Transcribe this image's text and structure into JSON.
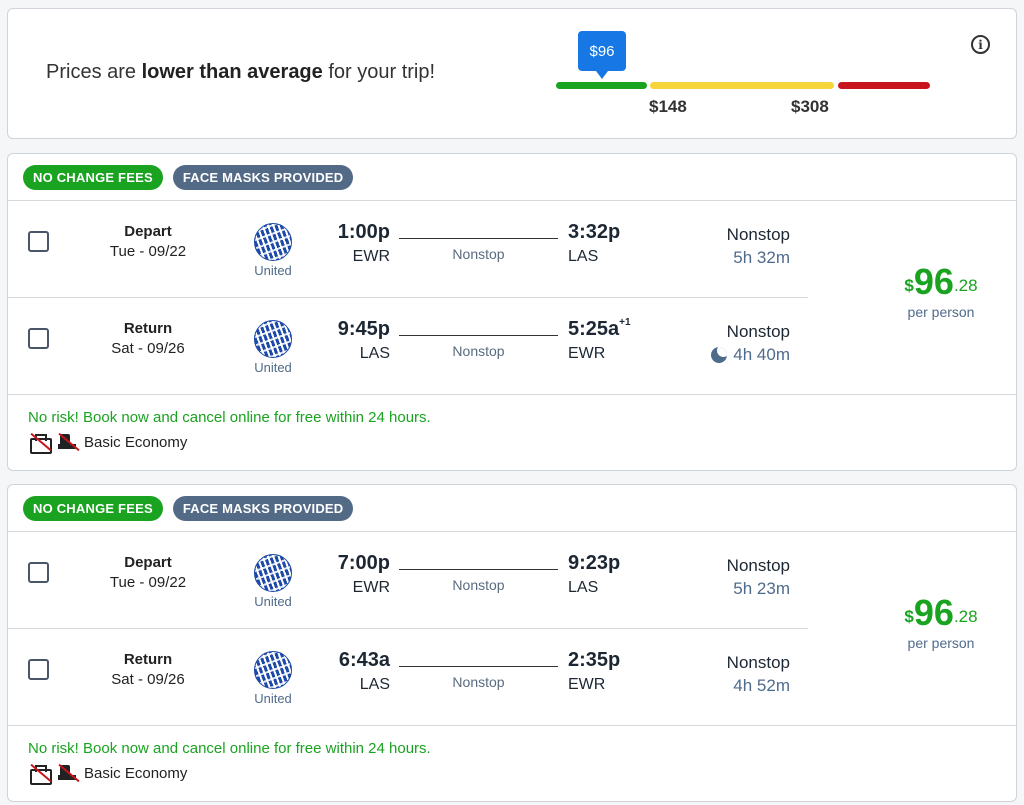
{
  "banner": {
    "text_pre": "Prices are ",
    "text_bold": "lower than average",
    "text_post": " for your trip!",
    "current_price": "$96",
    "marker_low": "$148",
    "marker_high": "$308",
    "colors": {
      "low": "#1aa320",
      "mid": "#f6d53b",
      "high": "#c8151b",
      "bubble": "#1777e4"
    },
    "info_icon": "info-icon"
  },
  "itineraries": [
    {
      "tags": [
        "NO CHANGE FEES",
        "FACE MASKS PROVIDED"
      ],
      "legs": [
        {
          "direction": "Depart",
          "date": "Tue - 09/22",
          "airline": "United",
          "dep_time": "1:00p",
          "dep_airport": "EWR",
          "mid": "Nonstop",
          "arr_time": "3:32p",
          "arr_day": "",
          "arr_airport": "LAS",
          "stops": "Nonstop",
          "duration": "5h 32m",
          "overnight": false
        },
        {
          "direction": "Return",
          "date": "Sat - 09/26",
          "airline": "United",
          "dep_time": "9:45p",
          "dep_airport": "LAS",
          "mid": "Nonstop",
          "arr_time": "5:25a",
          "arr_day": "+1",
          "arr_airport": "EWR",
          "stops": "Nonstop",
          "duration": "4h 40m",
          "overnight": true
        }
      ],
      "price": {
        "symbol": "$",
        "dollars": "96",
        "cents": ".28",
        "per": "per person"
      },
      "risk": "No risk! Book now and cancel online for free within 24 hours.",
      "fare_class": "Basic Economy"
    },
    {
      "tags": [
        "NO CHANGE FEES",
        "FACE MASKS PROVIDED"
      ],
      "legs": [
        {
          "direction": "Depart",
          "date": "Tue - 09/22",
          "airline": "United",
          "dep_time": "7:00p",
          "dep_airport": "EWR",
          "mid": "Nonstop",
          "arr_time": "9:23p",
          "arr_day": "",
          "arr_airport": "LAS",
          "stops": "Nonstop",
          "duration": "5h 23m",
          "overnight": false
        },
        {
          "direction": "Return",
          "date": "Sat - 09/26",
          "airline": "United",
          "dep_time": "6:43a",
          "dep_airport": "LAS",
          "mid": "Nonstop",
          "arr_time": "2:35p",
          "arr_day": "",
          "arr_airport": "EWR",
          "stops": "Nonstop",
          "duration": "4h 52m",
          "overnight": false
        }
      ],
      "price": {
        "symbol": "$",
        "dollars": "96",
        "cents": ".28",
        "per": "per person"
      },
      "risk": "No risk! Book now and cancel online for free within 24 hours.",
      "fare_class": "Basic Economy"
    }
  ]
}
